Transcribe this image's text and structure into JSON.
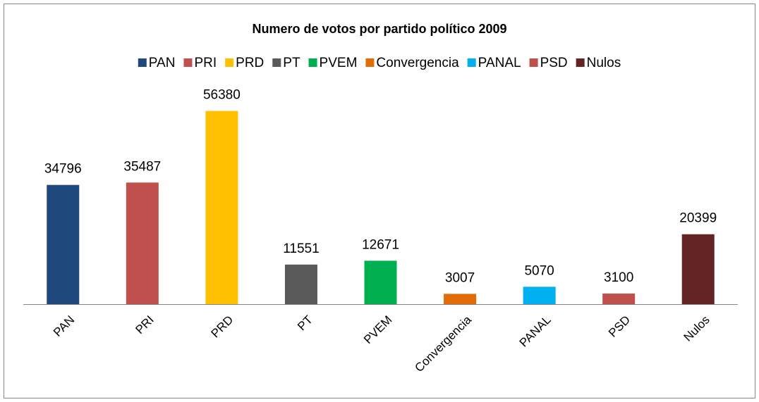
{
  "chart_data": {
    "type": "bar",
    "title": "Numero de votos por partido político 2009",
    "categories": [
      "PAN",
      "PRI",
      "PRD",
      "PT",
      "PVEM",
      "Convergencia",
      "PANAL",
      "PSD",
      "Nulos"
    ],
    "values": [
      34796,
      35487,
      56380,
      11551,
      12671,
      3007,
      5070,
      3100,
      20399
    ],
    "colors": [
      "#1f497d",
      "#c0504d",
      "#ffc000",
      "#595959",
      "#00b050",
      "#e36c09",
      "#00b0f0",
      "#c0504d",
      "#632423"
    ],
    "ylim": [
      0,
      60000
    ]
  }
}
